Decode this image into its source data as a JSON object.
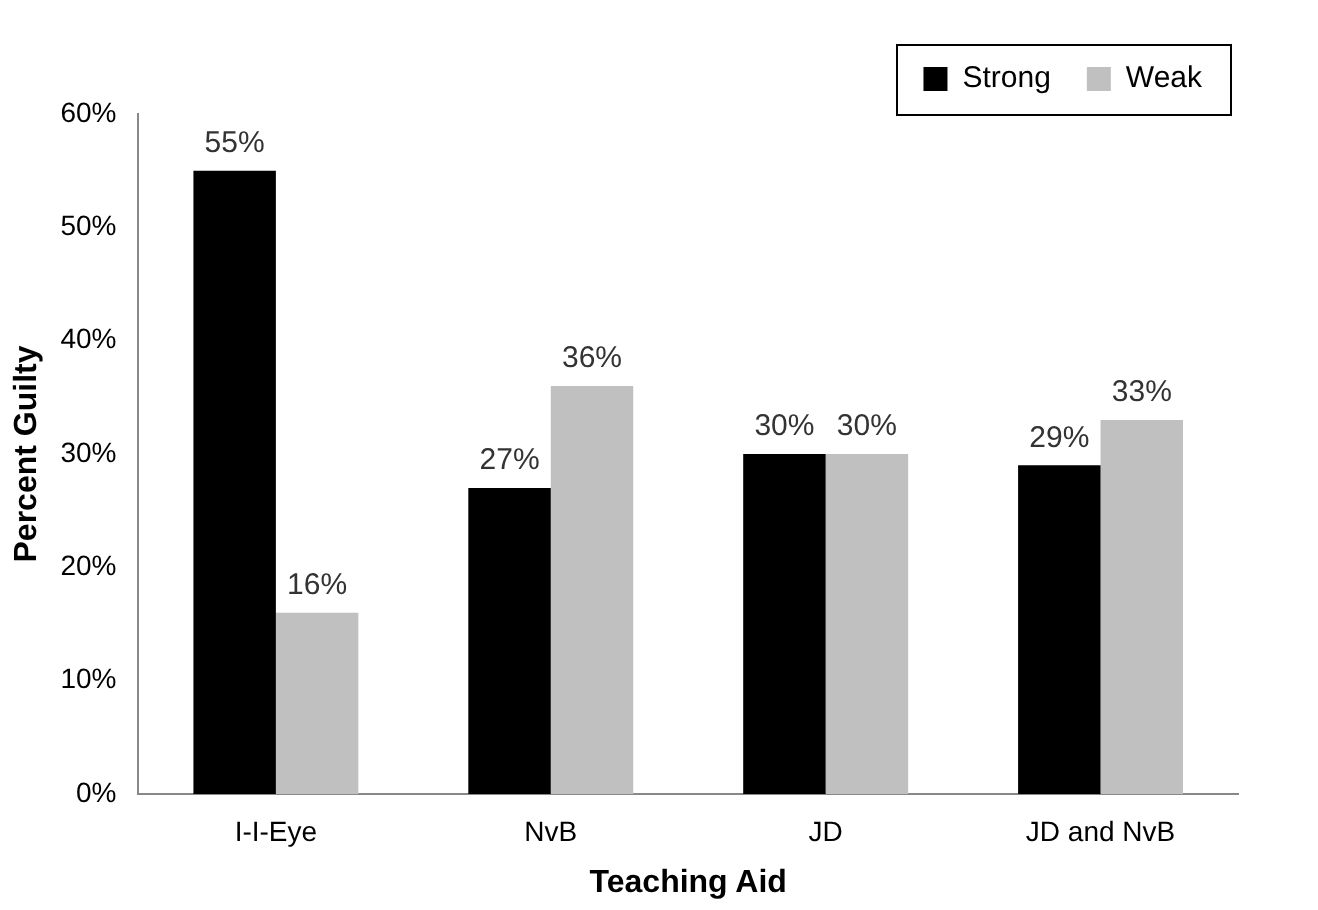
{
  "chart_data": {
    "type": "bar",
    "xlabel": "Teaching Aid",
    "ylabel": "Percent Guilty",
    "categories": [
      "I-I-Eye",
      "NvB",
      "JD",
      "JD and NvB"
    ],
    "series": [
      {
        "name": "Strong",
        "color": "#000000",
        "values": [
          55,
          27,
          30,
          29
        ],
        "value_labels": [
          "55%",
          "27%",
          "30%",
          "29%"
        ]
      },
      {
        "name": "Weak",
        "color": "#c0c0c0",
        "values": [
          16,
          36,
          30,
          33
        ],
        "value_labels": [
          "16%",
          "36%",
          "30%",
          "33%"
        ]
      }
    ],
    "ylim": [
      0,
      60
    ],
    "yticks": [
      {
        "value": 0,
        "label": "0%"
      },
      {
        "value": 10,
        "label": "10%"
      },
      {
        "value": 20,
        "label": "20%"
      },
      {
        "value": 30,
        "label": "30%"
      },
      {
        "value": 40,
        "label": "40%"
      },
      {
        "value": 50,
        "label": "50%"
      },
      {
        "value": 60,
        "label": "60%"
      }
    ],
    "legend": "top right",
    "grid": false
  }
}
